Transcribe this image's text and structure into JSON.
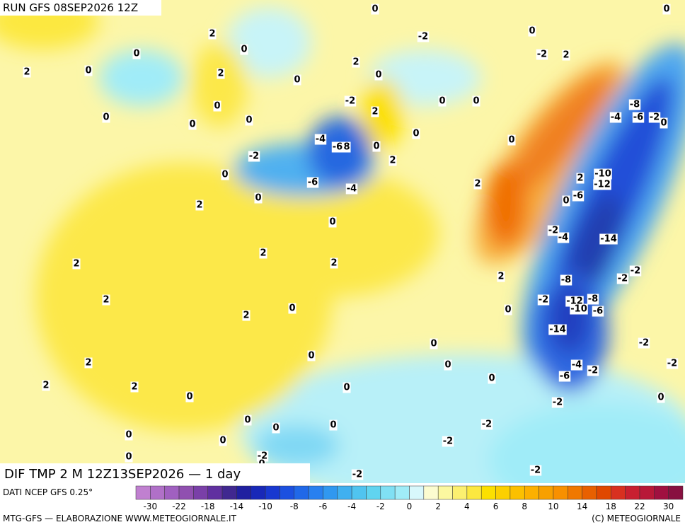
{
  "header": {
    "run": "RUN GFS 08SEP2026 12Z",
    "product": "DIF TMP 2 M 12Z13SEP2026 — 1 day"
  },
  "footer": {
    "source": "DATI NCEP GFS 0.25°",
    "credit": "MTG-GFS — ELABORAZIONE WWW.METEOGIORNALE.IT",
    "copyright": "(C) METEOGIORNALE"
  },
  "legend": {
    "colors": [
      "#c080d0",
      "#b070c8",
      "#a060c0",
      "#9050b0",
      "#7a40a8",
      "#6030a0",
      "#402890",
      "#2020a0",
      "#1828b8",
      "#1838d0",
      "#1c50e0",
      "#2068e8",
      "#2880f0",
      "#3098f0",
      "#40b0f0",
      "#50c4f0",
      "#60d4f0",
      "#80e0f4",
      "#a0ecf8",
      "#d8f8fc",
      "#fcfcd0",
      "#fcf8a0",
      "#fcf070",
      "#fce840",
      "#fce000",
      "#fcd000",
      "#fcc000",
      "#fcb000",
      "#f8a000",
      "#f89000",
      "#f07800",
      "#e86000",
      "#e04800",
      "#d83020",
      "#c82030",
      "#b81838",
      "#a01040",
      "#881040"
    ],
    "labels": [
      -30,
      -22,
      -18,
      -14,
      -10,
      -8,
      -6,
      -4,
      -2,
      0,
      2,
      4,
      6,
      8,
      10,
      14,
      18,
      22,
      30
    ]
  },
  "map_labels": [
    0,
    0,
    2,
    -2,
    0,
    0,
    0,
    2,
    0,
    2,
    -2,
    2,
    0,
    2,
    0,
    0,
    0,
    0,
    0,
    -2,
    2,
    0,
    0,
    -8,
    -4,
    -6,
    -2,
    0,
    -4,
    -6,
    8,
    0,
    0,
    0,
    -2,
    2,
    0,
    -6,
    -4,
    -10,
    -12,
    2,
    2,
    -6,
    0,
    0,
    2,
    0,
    -2,
    -4,
    -14,
    2,
    2,
    2,
    -2,
    -2,
    2,
    -8,
    -2,
    -12,
    -8,
    -10,
    -6,
    2,
    2,
    0,
    0,
    -14,
    0,
    0,
    -2,
    2,
    0,
    -4,
    -2,
    -6,
    -2,
    2,
    2,
    0,
    0,
    0,
    -2,
    0,
    0,
    0,
    0,
    -2,
    0,
    0,
    -2,
    0,
    -2,
    0,
    -2,
    -2
  ]
}
